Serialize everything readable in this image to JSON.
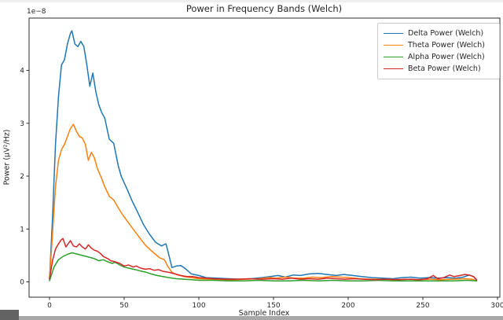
{
  "chart_data": {
    "type": "line",
    "title": "Power in Frequency Bands (Welch)",
    "xlabel": "Sample Index",
    "ylabel": "Power (μV²/Hz)",
    "y_offset_text": "1e−8",
    "y_scale_factor": 1e-08,
    "xlim": [
      -13.7,
      301.6
    ],
    "ylim": [
      -0.29,
      4.99
    ],
    "x_ticks": [
      0,
      50,
      100,
      150,
      200,
      250,
      300
    ],
    "y_ticks": [
      0,
      1,
      2,
      3,
      4
    ],
    "grid": false,
    "legend_position": "upper right",
    "series": [
      {
        "name": "Delta Power (Welch)",
        "color": "#1f77b4",
        "x": [
          0,
          2,
          4,
          6,
          8,
          10,
          12,
          14,
          15,
          17,
          19,
          21,
          23,
          25,
          27,
          29,
          31,
          33,
          35,
          37,
          40,
          43,
          46,
          48,
          52,
          55,
          59,
          63,
          67,
          71,
          75,
          78,
          80,
          82,
          85,
          88,
          91,
          95,
          100,
          105,
          112,
          120,
          128,
          135,
          142,
          148,
          153,
          158,
          163,
          168,
          174,
          180,
          186,
          192,
          197,
          203,
          209,
          216,
          223,
          230,
          236,
          242,
          248,
          254,
          260,
          266,
          272,
          277,
          281,
          284,
          286
        ],
        "y": [
          0.05,
          1.2,
          2.6,
          3.5,
          4.1,
          4.2,
          4.5,
          4.7,
          4.75,
          4.5,
          4.45,
          4.55,
          4.45,
          4.1,
          3.7,
          3.95,
          3.6,
          3.35,
          3.2,
          3.1,
          2.7,
          2.62,
          2.2,
          2.0,
          1.75,
          1.55,
          1.32,
          1.08,
          0.9,
          0.75,
          0.68,
          0.72,
          0.5,
          0.27,
          0.3,
          0.31,
          0.25,
          0.15,
          0.12,
          0.08,
          0.07,
          0.06,
          0.05,
          0.06,
          0.08,
          0.1,
          0.12,
          0.09,
          0.13,
          0.12,
          0.15,
          0.16,
          0.14,
          0.12,
          0.14,
          0.12,
          0.1,
          0.08,
          0.07,
          0.06,
          0.08,
          0.09,
          0.07,
          0.08,
          0.07,
          0.08,
          0.07,
          0.09,
          0.13,
          0.1,
          0.03
        ]
      },
      {
        "name": "Theta Power (Welch)",
        "color": "#ff7f0e",
        "x": [
          0,
          2,
          4,
          6,
          8,
          10,
          12,
          14,
          16,
          18,
          20,
          22,
          24,
          26,
          28,
          30,
          32,
          35,
          37,
          40,
          43,
          46,
          49,
          52,
          56,
          60,
          64,
          67,
          71,
          74,
          77,
          79,
          82,
          85,
          90,
          95,
          100,
          108,
          116,
          124,
          132,
          140,
          147,
          152,
          158,
          164,
          170,
          176,
          182,
          189,
          195,
          201,
          208,
          215,
          222,
          230,
          238,
          246,
          254,
          262,
          270,
          278,
          283,
          286
        ],
        "y": [
          0.05,
          0.9,
          1.8,
          2.3,
          2.5,
          2.6,
          2.75,
          2.9,
          2.98,
          2.85,
          2.75,
          2.72,
          2.6,
          2.3,
          2.45,
          2.35,
          2.15,
          1.95,
          1.8,
          1.62,
          1.55,
          1.4,
          1.27,
          1.15,
          1.0,
          0.85,
          0.7,
          0.62,
          0.52,
          0.45,
          0.42,
          0.3,
          0.18,
          0.14,
          0.1,
          0.08,
          0.06,
          0.05,
          0.04,
          0.04,
          0.05,
          0.06,
          0.08,
          0.07,
          0.09,
          0.07,
          0.07,
          0.09,
          0.08,
          0.1,
          0.09,
          0.08,
          0.06,
          0.05,
          0.05,
          0.04,
          0.05,
          0.04,
          0.05,
          0.04,
          0.05,
          0.06,
          0.05,
          0.02
        ]
      },
      {
        "name": "Alpha Power (Welch)",
        "color": "#2ca02c",
        "x": [
          0,
          3,
          6,
          9,
          12,
          15,
          18,
          22,
          26,
          30,
          33,
          36,
          39,
          42,
          44,
          47,
          50,
          53,
          56,
          59,
          62,
          65,
          68,
          72,
          76,
          80,
          85,
          90,
          95,
          100,
          110,
          120,
          130,
          140,
          150,
          160,
          170,
          180,
          190,
          200,
          210,
          220,
          230,
          240,
          250,
          260,
          270,
          280,
          286
        ],
        "y": [
          0.02,
          0.28,
          0.42,
          0.48,
          0.52,
          0.55,
          0.53,
          0.5,
          0.47,
          0.44,
          0.4,
          0.42,
          0.38,
          0.35,
          0.37,
          0.32,
          0.28,
          0.26,
          0.24,
          0.22,
          0.2,
          0.18,
          0.15,
          0.12,
          0.1,
          0.08,
          0.06,
          0.05,
          0.04,
          0.03,
          0.03,
          0.02,
          0.02,
          0.03,
          0.02,
          0.02,
          0.03,
          0.02,
          0.03,
          0.02,
          0.02,
          0.03,
          0.02,
          0.02,
          0.02,
          0.02,
          0.02,
          0.03,
          0.02
        ]
      },
      {
        "name": "Beta Power (Welch)",
        "color": "#d62728",
        "x": [
          0,
          2,
          4,
          6,
          8,
          9,
          11,
          13,
          14,
          16,
          18,
          20,
          22,
          24,
          26,
          28,
          30,
          32,
          34,
          36,
          39,
          41,
          44,
          47,
          50,
          53,
          56,
          58,
          61,
          64,
          67,
          70,
          73,
          76,
          80,
          84,
          88,
          92,
          96,
          100,
          105,
          110,
          118,
          126,
          134,
          142,
          150,
          156,
          162,
          168,
          174,
          180,
          186,
          192,
          198,
          204,
          210,
          218,
          226,
          234,
          242,
          248,
          253,
          257,
          260,
          264,
          268,
          271,
          275,
          278,
          281,
          284,
          286
        ],
        "y": [
          0.05,
          0.4,
          0.62,
          0.72,
          0.8,
          0.82,
          0.66,
          0.74,
          0.78,
          0.68,
          0.66,
          0.72,
          0.66,
          0.62,
          0.7,
          0.64,
          0.6,
          0.58,
          0.54,
          0.48,
          0.44,
          0.4,
          0.38,
          0.35,
          0.3,
          0.32,
          0.28,
          0.3,
          0.26,
          0.24,
          0.25,
          0.22,
          0.23,
          0.2,
          0.18,
          0.15,
          0.12,
          0.1,
          0.1,
          0.08,
          0.07,
          0.06,
          0.05,
          0.05,
          0.06,
          0.05,
          0.06,
          0.05,
          0.07,
          0.05,
          0.06,
          0.05,
          0.07,
          0.06,
          0.05,
          0.06,
          0.05,
          0.04,
          0.05,
          0.04,
          0.05,
          0.04,
          0.06,
          0.12,
          0.06,
          0.08,
          0.13,
          0.1,
          0.12,
          0.14,
          0.13,
          0.1,
          0.04
        ]
      }
    ]
  }
}
